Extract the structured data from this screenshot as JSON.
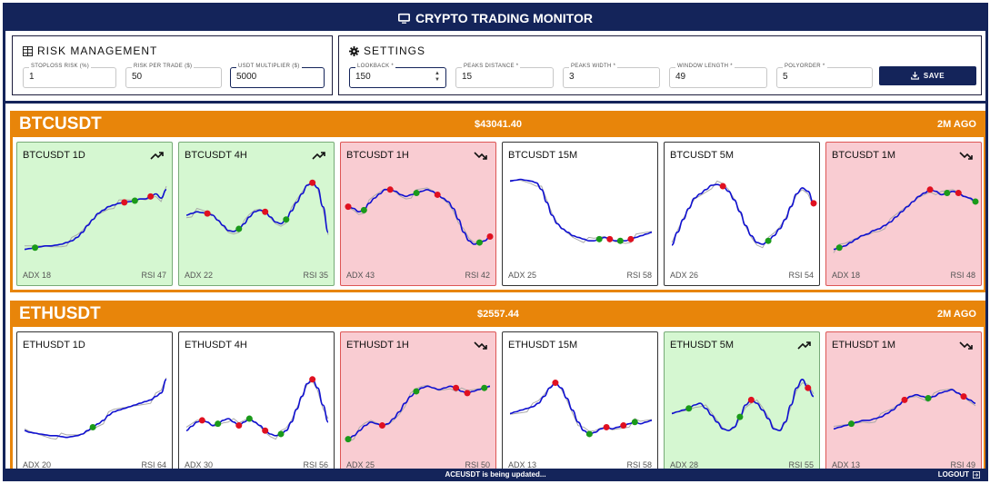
{
  "app": {
    "title": "CRYPTO TRADING MONITOR",
    "title_icon": "monitor-icon"
  },
  "risk": {
    "title": "RISK MANAGEMENT",
    "icon": "table-icon",
    "fields": [
      {
        "label": "STOPLOSS RISK (%)",
        "value": "1"
      },
      {
        "label": "RISK PER TRADE ($)",
        "value": "50"
      },
      {
        "label": "USDT MULTIPLIER ($)",
        "value": "5000"
      }
    ]
  },
  "settings": {
    "title": "SETTINGS",
    "icon": "gear-icon",
    "fields": [
      {
        "label": "LOOKBACK *",
        "value": "150"
      },
      {
        "label": "PEAKS DISTANCE *",
        "value": "15"
      },
      {
        "label": "PEAKS WIDTH *",
        "value": "3"
      },
      {
        "label": "WINDOW LENGTH *",
        "value": "49"
      },
      {
        "label": "POLYORDER *",
        "value": "5"
      }
    ],
    "save_label": "SAVE"
  },
  "colors": {
    "navy": "#14245a",
    "orange": "#e8850a",
    "up_bg": "#d5f7d1",
    "down_bg": "#f9ccd2",
    "smooth_line": "#1010d0",
    "raw_line": "#aaaaaa",
    "peak": "#e01020",
    "trough": "#1a9a1a"
  },
  "symbols": [
    {
      "name": "BTCUSDT",
      "price": "$43041.40",
      "age": "2M AGO",
      "cards": [
        {
          "title": "BTCUSDT 1D",
          "state": "up",
          "trend": "trend-up-icon",
          "adx": "ADX 18",
          "rsi": "RSI 47",
          "series": [
            90,
            89,
            88,
            87,
            86,
            86,
            85,
            84,
            82,
            80,
            76,
            70,
            62,
            55,
            48,
            44,
            40,
            38,
            36,
            35,
            34,
            33,
            31,
            31,
            28,
            25,
            30,
            20
          ],
          "peaks": [
            19,
            24
          ],
          "troughs": [
            2,
            21
          ]
        },
        {
          "title": "BTCUSDT 4H",
          "state": "up",
          "trend": "trend-up-icon",
          "adx": "ADX 22",
          "rsi": "RSI 35",
          "series": [
            50,
            48,
            46,
            47,
            48,
            50,
            56,
            62,
            68,
            69,
            66,
            60,
            52,
            46,
            44,
            46,
            52,
            58,
            60,
            55,
            45,
            35,
            25,
            15,
            12,
            18,
            40,
            70
          ],
          "peaks": [
            4,
            15,
            24
          ],
          "troughs": [
            10,
            19
          ]
        },
        {
          "title": "BTCUSDT 1H",
          "state": "down",
          "trend": "trend-down-icon",
          "adx": "ADX 43",
          "rsi": "RSI 42",
          "series": [
            40,
            42,
            46,
            44,
            36,
            30,
            25,
            20,
            20,
            22,
            26,
            28,
            26,
            24,
            22,
            20,
            22,
            26,
            30,
            34,
            42,
            55,
            70,
            80,
            84,
            82,
            80,
            75
          ],
          "peaks": [
            0,
            8,
            17,
            27
          ],
          "troughs": [
            3,
            13,
            25
          ]
        },
        {
          "title": "BTCUSDT 15M",
          "state": "neutral",
          "trend": "",
          "adx": "ADX 25",
          "rsi": "RSI 58",
          "series": [
            10,
            9,
            8,
            9,
            10,
            12,
            20,
            35,
            50,
            60,
            66,
            70,
            74,
            76,
            78,
            80,
            80,
            78,
            76,
            78,
            80,
            80,
            80,
            78,
            76,
            74,
            72,
            70
          ],
          "peaks": [
            19,
            23
          ],
          "troughs": [
            17,
            21
          ]
        },
        {
          "title": "BTCUSDT 5M",
          "state": "neutral",
          "trend": "",
          "adx": "ADX 26",
          "rsi": "RSI 54",
          "series": [
            85,
            70,
            55,
            42,
            30,
            25,
            20,
            15,
            14,
            16,
            22,
            32,
            46,
            62,
            74,
            82,
            84,
            80,
            74,
            66,
            55,
            40,
            25,
            18,
            22,
            36
          ],
          "peaks": [
            9,
            25
          ],
          "troughs": [
            17
          ]
        },
        {
          "title": "BTCUSDT 1M",
          "state": "down",
          "trend": "trend-down-icon",
          "adx": "ADX 18",
          "rsi": "RSI 48",
          "series": [
            90,
            88,
            86,
            82,
            78,
            74,
            72,
            68,
            66,
            62,
            58,
            52,
            46,
            40,
            34,
            28,
            24,
            20,
            22,
            26,
            24,
            22,
            24,
            28,
            30,
            34
          ],
          "peaks": [
            17,
            22
          ],
          "troughs": [
            1,
            20,
            25
          ]
        }
      ]
    },
    {
      "name": "ETHUSDT",
      "price": "$2557.44",
      "age": "2M AGO",
      "cards": [
        {
          "title": "ETHUSDT 1D",
          "state": "neutral",
          "trend": "",
          "adx": "ADX 20",
          "rsi": "RSI 64",
          "series": [
            80,
            82,
            83,
            84,
            85,
            86,
            86,
            87,
            88,
            87,
            86,
            84,
            80,
            76,
            72,
            68,
            62,
            58,
            56,
            54,
            52,
            50,
            48,
            46,
            44,
            40,
            36,
            20
          ],
          "peaks": [],
          "troughs": [
            13
          ]
        },
        {
          "title": "ETHUSDT 4H",
          "state": "neutral",
          "trend": "",
          "adx": "ADX 30",
          "rsi": "RSI 56",
          "series": [
            80,
            75,
            70,
            68,
            70,
            74,
            72,
            68,
            66,
            70,
            74,
            70,
            66,
            70,
            74,
            80,
            84,
            86,
            84,
            80,
            70,
            55,
            40,
            25,
            20,
            30,
            50,
            70
          ],
          "peaks": [
            3,
            10,
            15,
            24
          ],
          "troughs": [
            6,
            12,
            18
          ]
        },
        {
          "title": "ETHUSDT 1H",
          "state": "down",
          "trend": "trend-down-icon",
          "adx": "ADX 25",
          "rsi": "RSI 50",
          "series": [
            90,
            86,
            80,
            74,
            70,
            72,
            74,
            72,
            66,
            58,
            48,
            40,
            34,
            30,
            28,
            30,
            32,
            30,
            28,
            30,
            34,
            36,
            34,
            32,
            30,
            28
          ],
          "peaks": [
            6,
            19,
            21
          ],
          "troughs": [
            0,
            12,
            24
          ]
        },
        {
          "title": "ETHUSDT 15M",
          "state": "neutral",
          "trend": "",
          "adx": "ADX 13",
          "rsi": "RSI 58",
          "series": [
            60,
            58,
            56,
            54,
            52,
            48,
            40,
            30,
            24,
            30,
            42,
            56,
            70,
            80,
            84,
            82,
            78,
            76,
            78,
            76,
            74,
            72,
            70,
            72,
            70,
            68
          ],
          "peaks": [
            8,
            17,
            20
          ],
          "troughs": [
            14,
            22
          ]
        },
        {
          "title": "ETHUSDT 5M",
          "state": "up",
          "trend": "trend-up-icon",
          "adx": "ADX 28",
          "rsi": "RSI 55",
          "series": [
            60,
            58,
            56,
            54,
            50,
            48,
            54,
            62,
            70,
            78,
            80,
            76,
            64,
            50,
            44,
            48,
            56,
            66,
            78,
            80,
            70,
            50,
            30,
            20,
            30,
            40
          ],
          "peaks": [
            14,
            24
          ],
          "troughs": [
            3,
            12
          ]
        },
        {
          "title": "ETHUSDT 1M",
          "state": "down",
          "trend": "trend-down-icon",
          "adx": "ADX 13",
          "rsi": "RSI 49",
          "series": [
            78,
            76,
            74,
            72,
            70,
            68,
            68,
            66,
            64,
            60,
            56,
            50,
            44,
            40,
            38,
            40,
            42,
            40,
            36,
            34,
            32,
            36,
            40,
            44,
            48
          ],
          "peaks": [
            12,
            22
          ],
          "troughs": [
            3,
            16,
            25
          ]
        }
      ]
    }
  ],
  "footer": {
    "status": "ACEUSDT is being updated...",
    "logout_label": "LOGOUT",
    "logout_icon": "logout-icon"
  }
}
